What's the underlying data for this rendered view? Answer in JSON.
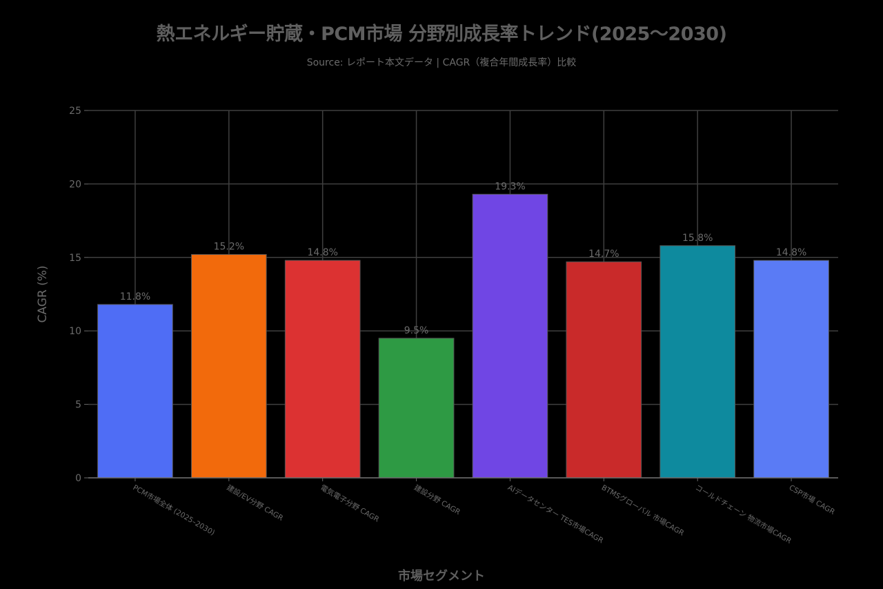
{
  "chart_data": {
    "type": "bar",
    "title": "熱エネルギー貯蔵・PCM市場 分野別成長率トレンド(2025〜2030)",
    "subtitle": "Source: レポート本文データ | CAGR（複合年間成長率）比較",
    "xlabel": "市場セグメント",
    "ylabel": "CAGR (%)",
    "ylim": [
      0,
      25
    ],
    "yticks": [
      0,
      5,
      10,
      15,
      20,
      25
    ],
    "grid": true,
    "categories": [
      "PCM市場全体 (2025–2030)",
      "建設/EV分野 CAGR",
      "電気電子分野 CAGR",
      "建設分野 CAGR",
      "AIデータセンター TES市場CAGR",
      "BTMSグローバル 市場CAGR",
      "コールドチェーン 物流市場CAGR",
      "CSP市場 CAGR"
    ],
    "values": [
      11.8,
      15.2,
      14.8,
      9.5,
      19.3,
      14.7,
      15.8,
      14.8
    ],
    "data_labels": [
      "11.8%",
      "15.2%",
      "14.8%",
      "9.5%",
      "19.3%",
      "14.7%",
      "15.8%",
      "14.8%"
    ],
    "colors": [
      "#4F6DF5",
      "#F26A0C",
      "#DC3232",
      "#2E9A44",
      "#7046E4",
      "#C92A2A",
      "#0E8A9E",
      "#5A7BF5"
    ]
  },
  "style": {
    "background": "#000000",
    "grid_color": "#3f3f3f",
    "axis_color": "#6b6b6b",
    "text_color": "#6b6b6b",
    "bar_edge_color": "#555555"
  }
}
